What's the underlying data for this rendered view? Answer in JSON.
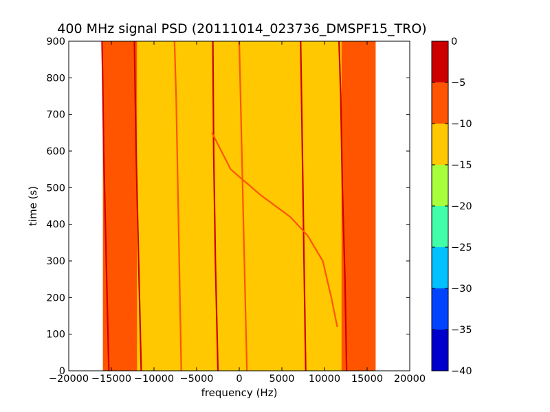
{
  "chart_data": {
    "type": "heatmap",
    "title": "400 MHz signal PSD (20111014_023736_DMSPF15_TRO)",
    "xlabel": "frequency (Hz)",
    "ylabel": "time (s)",
    "xlim": [
      -20000,
      20000
    ],
    "ylim": [
      0,
      900
    ],
    "x_ticks": [
      -20000,
      -15000,
      -10000,
      -5000,
      0,
      5000,
      10000,
      15000,
      20000
    ],
    "x_tick_labels": [
      "−20000",
      "−15000",
      "−10000",
      "−5000",
      "0",
      "5000",
      "10000",
      "15000",
      "20000"
    ],
    "y_ticks": [
      0,
      100,
      200,
      300,
      400,
      500,
      600,
      700,
      800,
      900
    ],
    "y_tick_labels": [
      "0",
      "100",
      "200",
      "300",
      "400",
      "500",
      "600",
      "700",
      "800",
      "900"
    ],
    "data_extent_x": [
      -16000,
      16000
    ],
    "background_level_outer": -10,
    "background_level_inner": -15,
    "inner_band_x": [
      -12000,
      12000
    ],
    "grid": false,
    "colorbar": {
      "levels": [
        -40,
        -35,
        -30,
        -25,
        -20,
        -15,
        -10,
        -5,
        0
      ],
      "tick_labels": [
        "−40",
        "−35",
        "−30",
        "−25",
        "−20",
        "−15",
        "−10",
        "−5",
        "0"
      ],
      "colors": [
        "#0000cd",
        "#0044ff",
        "#00c0ff",
        "#40ffa8",
        "#a8ff3c",
        "#ffc800",
        "#ff5400",
        "#cd0000"
      ]
    },
    "series": [
      {
        "level": -3,
        "points": [
          [
            -15300,
            0
          ],
          [
            -15500,
            200
          ],
          [
            -15700,
            400
          ],
          [
            -15900,
            600
          ],
          [
            -16000,
            770
          ],
          [
            -16100,
            900
          ]
        ]
      },
      {
        "level": -3,
        "points": [
          [
            -11500,
            0
          ],
          [
            -11700,
            200
          ],
          [
            -11900,
            400
          ],
          [
            -12100,
            600
          ],
          [
            -12300,
            900
          ]
        ]
      },
      {
        "level": -7,
        "points": [
          [
            -6800,
            0
          ],
          [
            -7000,
            250
          ],
          [
            -7200,
            500
          ],
          [
            -7400,
            750
          ],
          [
            -7600,
            900
          ]
        ]
      },
      {
        "level": -4,
        "points": [
          [
            -2500,
            0
          ],
          [
            -2800,
            300
          ],
          [
            -3000,
            600
          ],
          [
            -3100,
            900
          ]
        ]
      },
      {
        "level": -7,
        "points": [
          [
            900,
            0
          ],
          [
            600,
            300
          ],
          [
            300,
            600
          ],
          [
            0,
            900
          ]
        ]
      },
      {
        "level": -3,
        "points": [
          [
            7800,
            0
          ],
          [
            7600,
            300
          ],
          [
            7400,
            600
          ],
          [
            7200,
            900
          ]
        ]
      },
      {
        "level": -3,
        "points": [
          [
            12600,
            0
          ],
          [
            12400,
            250
          ],
          [
            12100,
            500
          ],
          [
            11900,
            750
          ],
          [
            11700,
            900
          ]
        ]
      },
      {
        "level": -7,
        "points": [
          [
            -3200,
            650
          ],
          [
            -1000,
            550
          ],
          [
            2500,
            480
          ],
          [
            6000,
            420
          ],
          [
            8000,
            370
          ],
          [
            9800,
            300
          ],
          [
            10800,
            200
          ],
          [
            11500,
            120
          ]
        ]
      }
    ]
  }
}
